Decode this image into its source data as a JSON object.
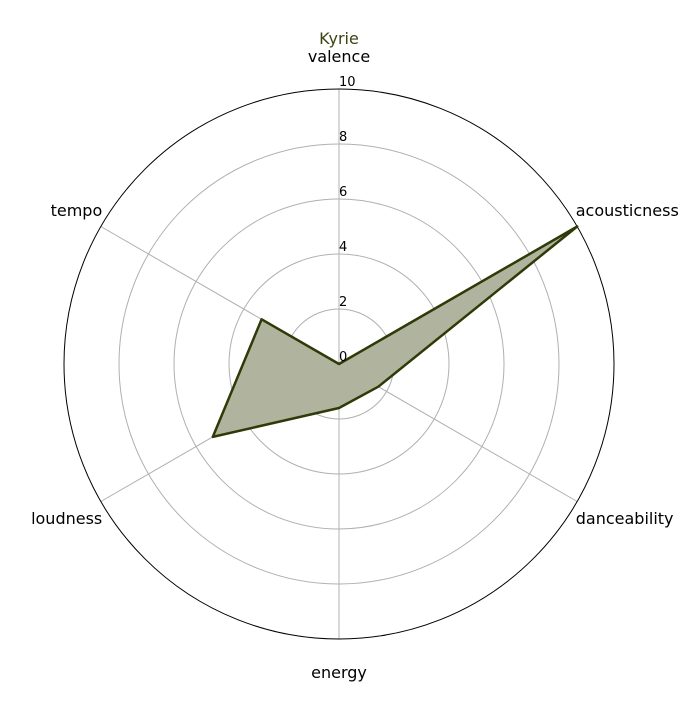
{
  "chart_data": {
    "type": "radar",
    "title": "Kyrie",
    "axes": [
      "valence",
      "acousticness",
      "danceability",
      "energy",
      "loudness",
      "tempo"
    ],
    "series": [
      {
        "name": "Kyrie",
        "values": [
          0.0,
          10.0,
          1.65,
          1.6,
          5.3,
          3.25
        ]
      }
    ],
    "rlim": [
      0,
      10
    ],
    "r_ticks": [
      0,
      2,
      4,
      6,
      8,
      10
    ],
    "grid": true,
    "colors": {
      "title": "#3a4410",
      "line": "#2e3a08",
      "fill": "#b0b49e",
      "grid": "#b0b0b0",
      "frame": "#000000"
    }
  }
}
